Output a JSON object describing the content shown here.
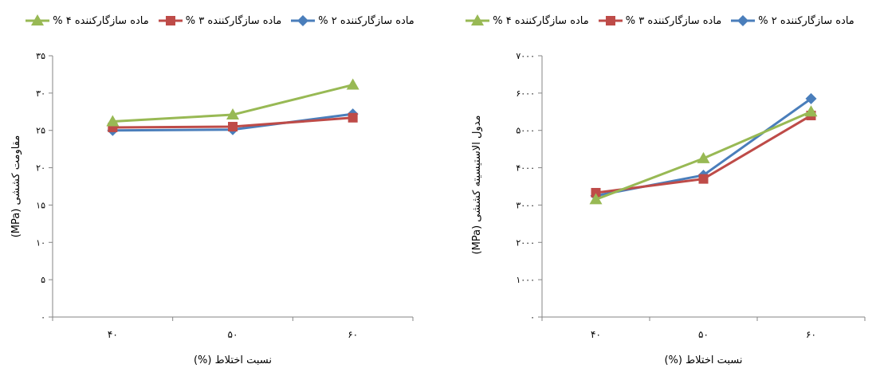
{
  "chart_data": [
    {
      "type": "line",
      "title": "",
      "xlabel": "نسبت اختلاط (%)",
      "ylabel": "مقاومت کششی (MPa)",
      "categories": [
        "۴۰",
        "۵۰",
        "۶۰"
      ],
      "y_ticks": [
        "۰",
        "۵",
        "۱۰",
        "۱۵",
        "۲۰",
        "۲۵",
        "۳۰",
        "۳۵"
      ],
      "ylim": [
        0,
        35
      ],
      "grid": false,
      "legend_position": "top",
      "series": [
        {
          "name": "ماده سازگارکننده ۲ %",
          "values": [
            25.0,
            25.1,
            27.2
          ],
          "color": "#4a7ebb",
          "marker": "diamond"
        },
        {
          "name": "ماده سازگارکننده ۳ %",
          "values": [
            25.4,
            25.5,
            26.7
          ],
          "color": "#be4b48",
          "marker": "square"
        },
        {
          "name": "ماده سازگارکننده ۴ %",
          "values": [
            26.2,
            27.1,
            31.1
          ],
          "color": "#98b954",
          "marker": "triangle"
        }
      ]
    },
    {
      "type": "line",
      "title": "",
      "xlabel": "نسبت اختلاط (%)",
      "ylabel": "مدول الاستیسیته کششی (MPa)",
      "categories": [
        "۴۰",
        "۵۰",
        "۶۰"
      ],
      "y_ticks": [
        "۰",
        "۱۰۰۰",
        "۲۰۰۰",
        "۳۰۰۰",
        "۴۰۰۰",
        "۵۰۰۰",
        "۶۰۰۰",
        "۷۰۰۰"
      ],
      "ylim": [
        0,
        7000
      ],
      "grid": false,
      "legend_position": "top",
      "series": [
        {
          "name": "ماده سازگارکننده ۲ %",
          "values": [
            3250,
            3800,
            5850
          ],
          "color": "#4a7ebb",
          "marker": "diamond"
        },
        {
          "name": "ماده سازگارکننده ۳ %",
          "values": [
            3330,
            3700,
            5400
          ],
          "color": "#be4b48",
          "marker": "square"
        },
        {
          "name": "ماده سازگارکننده ۴ %",
          "values": [
            3150,
            4250,
            5500
          ],
          "color": "#98b954",
          "marker": "triangle"
        }
      ]
    }
  ]
}
